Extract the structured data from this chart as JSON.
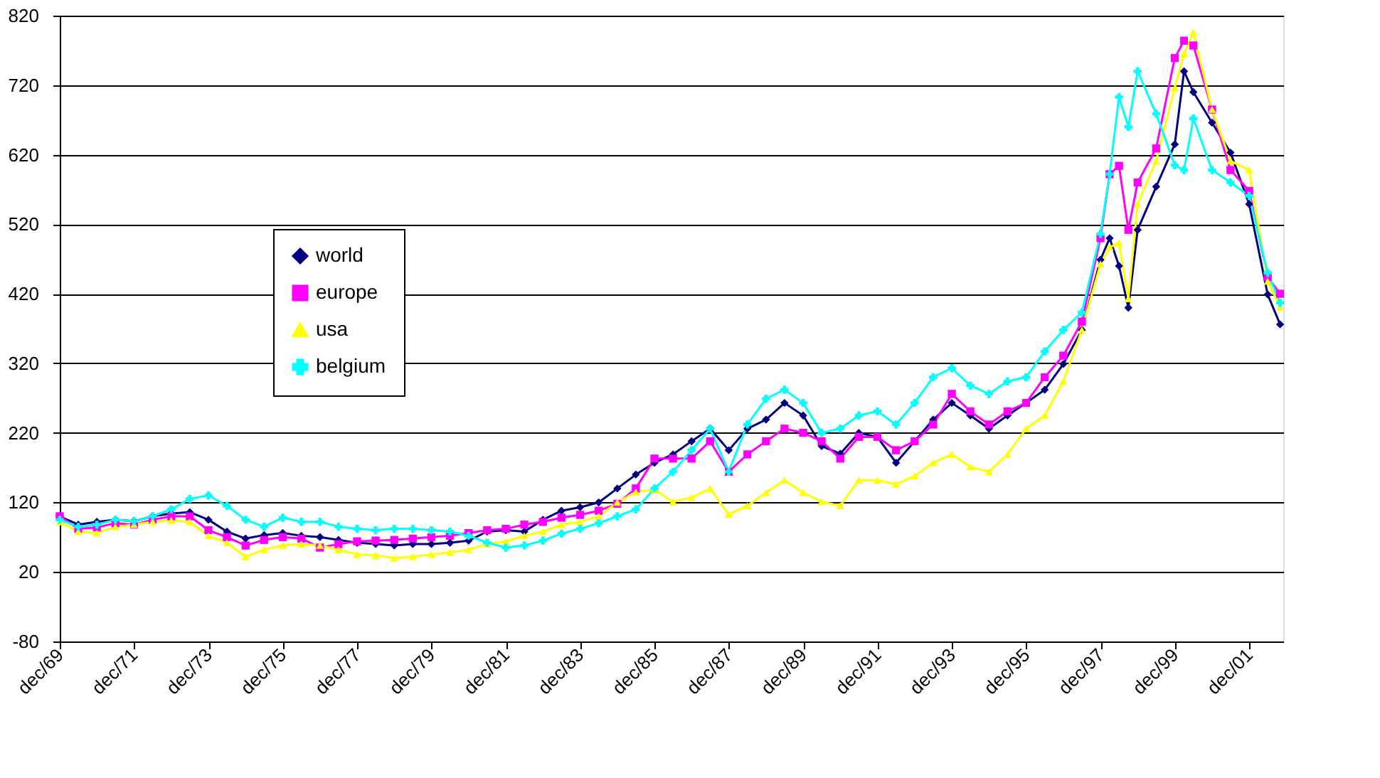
{
  "chart_data": {
    "type": "line",
    "x": [
      "1969-12",
      "1970-06",
      "1970-12",
      "1971-06",
      "1971-12",
      "1972-06",
      "1972-12",
      "1973-06",
      "1973-12",
      "1974-06",
      "1974-12",
      "1975-06",
      "1975-12",
      "1976-06",
      "1976-12",
      "1977-06",
      "1977-12",
      "1978-06",
      "1978-12",
      "1979-06",
      "1979-12",
      "1980-06",
      "1980-12",
      "1981-06",
      "1981-12",
      "1982-06",
      "1982-12",
      "1983-06",
      "1983-12",
      "1984-06",
      "1984-12",
      "1985-06",
      "1985-12",
      "1986-06",
      "1986-12",
      "1987-06",
      "1987-12",
      "1988-06",
      "1988-12",
      "1989-06",
      "1989-12",
      "1990-06",
      "1990-12",
      "1991-06",
      "1991-12",
      "1992-06",
      "1992-12",
      "1993-06",
      "1993-12",
      "1994-06",
      "1994-12",
      "1995-06",
      "1995-12",
      "1996-06",
      "1996-12",
      "1997-06",
      "1997-12",
      "1998-03",
      "1998-06",
      "1998-09",
      "1998-12",
      "1999-06",
      "1999-12",
      "2000-03",
      "2000-06",
      "2000-12",
      "2001-06",
      "2001-12",
      "2002-06",
      "2002-10"
    ],
    "series": [
      {
        "name": "world",
        "color": "#000080",
        "marker": "diamond",
        "values": [
          100,
          88,
          92,
          95,
          93,
          100,
          104,
          106,
          95,
          78,
          68,
          73,
          76,
          72,
          70,
          66,
          62,
          60,
          58,
          60,
          60,
          62,
          65,
          78,
          80,
          78,
          95,
          108,
          113,
          120,
          140,
          160,
          177,
          189,
          208,
          226,
          195,
          226,
          239,
          263,
          245,
          201,
          190,
          220,
          214,
          177,
          208,
          239,
          263,
          245,
          226,
          245,
          263,
          282,
          319,
          368,
          469,
          500,
          460,
          400,
          512,
          574,
          635,
          740,
          710,
          666,
          623,
          549,
          419,
          376
        ]
      },
      {
        "name": "europe",
        "color": "#ff00ff",
        "marker": "square",
        "values": [
          100,
          82,
          84,
          90,
          88,
          95,
          100,
          100,
          80,
          70,
          58,
          66,
          70,
          68,
          55,
          60,
          64,
          65,
          66,
          68,
          70,
          72,
          76,
          80,
          82,
          88,
          92,
          98,
          102,
          108,
          118,
          140,
          183,
          183,
          183,
          208,
          164,
          189,
          208,
          226,
          220,
          208,
          183,
          214,
          214,
          195,
          208,
          232,
          276,
          251,
          232,
          251,
          263,
          300,
          331,
          380,
          500,
          592,
          604,
          512,
          580,
          629,
          759,
          784,
          777,
          685,
          598,
          568,
          444,
          420
        ]
      },
      {
        "name": "usa",
        "color": "#ffff00",
        "marker": "triangle",
        "values": [
          92,
          78,
          76,
          85,
          88,
          92,
          94,
          92,
          72,
          62,
          42,
          52,
          58,
          60,
          58,
          52,
          45,
          44,
          40,
          42,
          45,
          48,
          52,
          60,
          64,
          72,
          78,
          88,
          92,
          100,
          120,
          135,
          138,
          121,
          127,
          140,
          103,
          115,
          134,
          152,
          134,
          121,
          115,
          152,
          152,
          146,
          158,
          177,
          189,
          171,
          164,
          189,
          226,
          245,
          294,
          368,
          463,
          487,
          493,
          413,
          549,
          611,
          716,
          765,
          796,
          685,
          611,
          598,
          438,
          401
        ]
      },
      {
        "name": "belgium",
        "color": "#00ffff",
        "marker": "cross",
        "values": [
          95,
          85,
          88,
          95,
          93,
          100,
          110,
          125,
          130,
          115,
          95,
          85,
          98,
          92,
          92,
          85,
          82,
          80,
          82,
          82,
          80,
          78,
          72,
          62,
          55,
          58,
          65,
          75,
          82,
          90,
          100,
          110,
          140,
          164,
          195,
          226,
          164,
          232,
          269,
          282,
          263,
          220,
          226,
          245,
          251,
          232,
          263,
          300,
          313,
          288,
          276,
          294,
          300,
          337,
          368,
          393,
          506,
          592,
          703,
          660,
          740,
          679,
          605,
          598,
          672,
          598,
          580,
          561,
          450,
          407
        ]
      }
    ],
    "xlim": [
      "1969-12",
      "2002-11"
    ],
    "xticks": [
      {
        "value": "1969-12",
        "label": "dec/69"
      },
      {
        "value": "1971-12",
        "label": "dec/71"
      },
      {
        "value": "1973-12",
        "label": "dec/73"
      },
      {
        "value": "1975-12",
        "label": "dec/75"
      },
      {
        "value": "1977-12",
        "label": "dec/77"
      },
      {
        "value": "1979-12",
        "label": "dec/79"
      },
      {
        "value": "1981-12",
        "label": "dec/81"
      },
      {
        "value": "1983-12",
        "label": "dec/83"
      },
      {
        "value": "1985-12",
        "label": "dec/85"
      },
      {
        "value": "1987-12",
        "label": "dec/87"
      },
      {
        "value": "1989-12",
        "label": "dec/89"
      },
      {
        "value": "1991-12",
        "label": "dec/91"
      },
      {
        "value": "1993-12",
        "label": "dec/93"
      },
      {
        "value": "1995-12",
        "label": "dec/95"
      },
      {
        "value": "1997-12",
        "label": "dec/97"
      },
      {
        "value": "1999-12",
        "label": "dec/99"
      },
      {
        "value": "2001-12",
        "label": "dec/01"
      }
    ],
    "ylim": [
      -80,
      820
    ],
    "yticks": [
      -80,
      20,
      120,
      220,
      320,
      420,
      520,
      620,
      720,
      820
    ],
    "grid": "y",
    "legend": "top left",
    "line_style": "solid"
  }
}
